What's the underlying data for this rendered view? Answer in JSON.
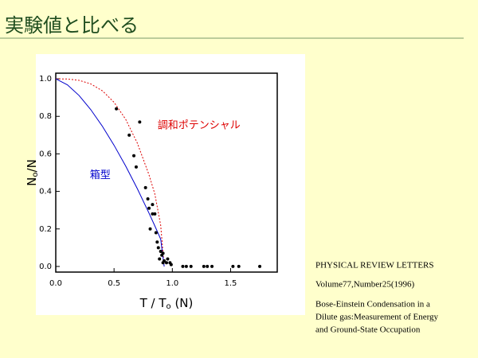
{
  "title": "実験値と比べる",
  "chart_data": {
    "type": "line",
    "xlabel": [
      "T / T",
      "o",
      " (N)"
    ],
    "ylabel": [
      "N",
      "o",
      "/N"
    ],
    "xlim": [
      0,
      1.9
    ],
    "ylim": [
      -0.03,
      1.03
    ],
    "xticks": [
      {
        "value": 0,
        "label": "0.0"
      },
      {
        "value": 0.5,
        "label": "0.5"
      },
      {
        "value": 1,
        "label": "1.0"
      },
      {
        "value": 1.5,
        "label": "1.5"
      }
    ],
    "yticks": [
      {
        "value": 0,
        "label": "0.0"
      },
      0.2,
      0.4,
      0.6,
      0.8,
      {
        "value": 1,
        "label": "1.0"
      }
    ],
    "series": [
      {
        "label": "調和ポテンシャル",
        "color": "#dd0000",
        "dash": true,
        "mode": "line",
        "x": [
          0,
          0.1,
          0.2,
          0.3,
          0.4,
          0.5,
          0.6,
          0.7,
          0.8,
          0.85,
          0.9,
          0.93
        ],
        "values": [
          1,
          0.999,
          0.992,
          0.973,
          0.936,
          0.875,
          0.784,
          0.657,
          0.488,
          0.386,
          0.22,
          0
        ]
      },
      {
        "label": "箱型",
        "color": "#0000cc",
        "dash": false,
        "mode": "line",
        "x": [
          0,
          0.1,
          0.2,
          0.3,
          0.4,
          0.5,
          0.6,
          0.7,
          0.8,
          0.85,
          0.9,
          0.93
        ],
        "values": [
          1,
          0.968,
          0.911,
          0.836,
          0.747,
          0.646,
          0.535,
          0.414,
          0.284,
          0.216,
          0.146,
          0
        ]
      },
      {
        "color": "#000000",
        "mode": "markers",
        "x": [
          0.52,
          0.63,
          0.72,
          0.67,
          0.69,
          0.77,
          0.79,
          0.8,
          0.83,
          0.83,
          0.85,
          0.81,
          0.86,
          0.87,
          0.88,
          0.9,
          0.91,
          0.92,
          0.89,
          0.93,
          0.95,
          0.98,
          0.92,
          0.96,
          0.99,
          1.09,
          1.12,
          1.16,
          1.27,
          1.3,
          1.34,
          1.52,
          1.57,
          1.75
        ],
        "values": [
          0.84,
          0.7,
          0.77,
          0.59,
          0.53,
          0.42,
          0.36,
          0.31,
          0.33,
          0.28,
          0.28,
          0.2,
          0.18,
          0.13,
          0.1,
          0.08,
          0.06,
          0.07,
          0.04,
          0.03,
          0.02,
          0.02,
          0.02,
          0.04,
          0.01,
          0,
          0,
          0,
          0,
          0,
          0,
          0,
          0,
          0
        ]
      }
    ]
  },
  "reference": [
    "PHYSICAL REVIEW LETTERS",
    "Volume77,Number25(1996)",
    "Bose-Einstein Condensation in a",
    "Dilute gas:Measurement of Energy",
    "and Ground-State Occupation"
  ]
}
